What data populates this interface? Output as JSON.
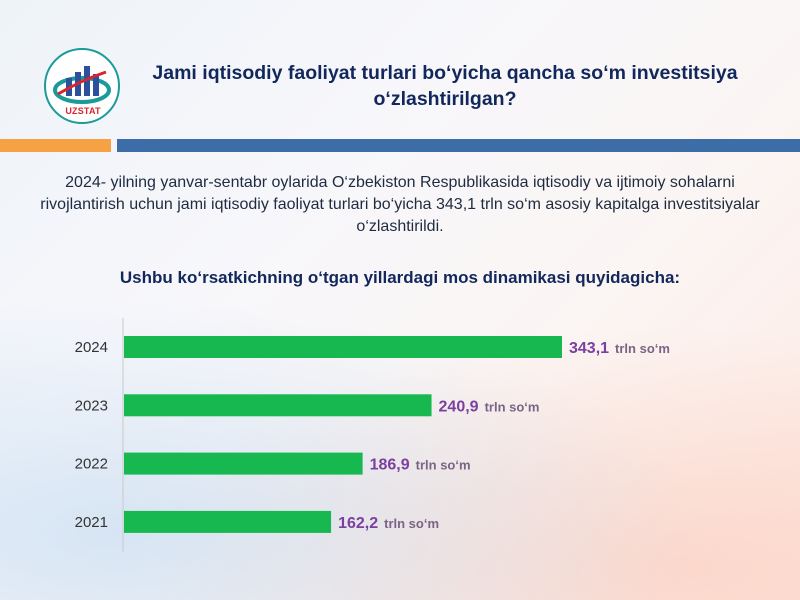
{
  "header": {
    "title": "Jami iqtisodiy faoliyat turlari bo‘yicha qancha so‘m investitsiya o‘zlashtirilgan?",
    "logo_text": "UZSTAT"
  },
  "intro_text": "2024- yilning yanvar-sentabr oylarida O‘zbekiston Respublikasida iqtisodiy va ijtimoiy sohalarni rivojlantirish uchun jami iqtisodiy faoliyat turlari bo‘yicha 343,1 trln so‘m asosiy kapitalga investitsiyalar o‘zlashtirildi.",
  "chart_title": "Ushbu ko‘rsatkichning o‘tgan yillardagi mos dinamikasi quyidagicha:",
  "colors": {
    "bar": "#16b84f",
    "value_label": "#7b3fa0",
    "unit_label": "#7a6486",
    "title": "#12285c",
    "orange_band": "#f6a144",
    "blue_band": "#3d6da6"
  },
  "chart_data": {
    "type": "bar",
    "orientation": "horizontal",
    "categories": [
      "2024",
      "2023",
      "2022",
      "2021"
    ],
    "values": [
      343.1,
      240.9,
      186.9,
      162.2
    ],
    "value_labels": [
      "343,1",
      "240,9",
      "186,9",
      "162,2"
    ],
    "unit": "trln so‘m",
    "title": "",
    "xlabel": "",
    "ylabel": "",
    "xlim": [
      0,
      343.1
    ],
    "grid": false,
    "legend": "none"
  }
}
